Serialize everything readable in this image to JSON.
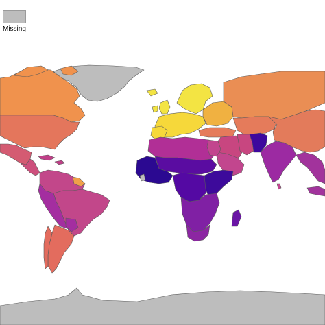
{
  "legend": {
    "missing_label": "Missing",
    "missing_color": "#bdbdbd"
  },
  "colors": {
    "missing": "#bdbdbd",
    "canada": "#f0924d",
    "usa": "#e4765c",
    "mexico": "#d45b72",
    "central_america": "#cd4f7c",
    "caribbean": "#c03f88",
    "south_america": "#c2478a",
    "andes": "#a42ea0",
    "southern_cone": "#e36c5e",
    "guianas": "#f0a04a",
    "northern_europe": "#f3e443",
    "western_europe": "#f6d83a",
    "eastern_europe": "#f0b141",
    "russia": "#ea8e54",
    "central_asia": "#e57b5b",
    "mongolia_china": "#e37b5b",
    "middle_east": "#c84680",
    "south_asia": "#9c2aa2",
    "pakistan_afghanistan": "#3d089e",
    "north_africa": "#b12f96",
    "sahel": "#5a0ca1",
    "west_africa": "#2b0991",
    "east_africa": "#3d0a9b",
    "central_africa": "#5409a3",
    "southern_africa": "#8020a4",
    "south_africa": "#8c26a2",
    "madagascar": "#6a15a5",
    "southeast_asia": "#a2339c",
    "sri_lanka": "#c24890",
    "egypt_arabia": "#c2468e",
    "greenland": "#bdbdbd",
    "antarctica": "#bdbdbd"
  }
}
